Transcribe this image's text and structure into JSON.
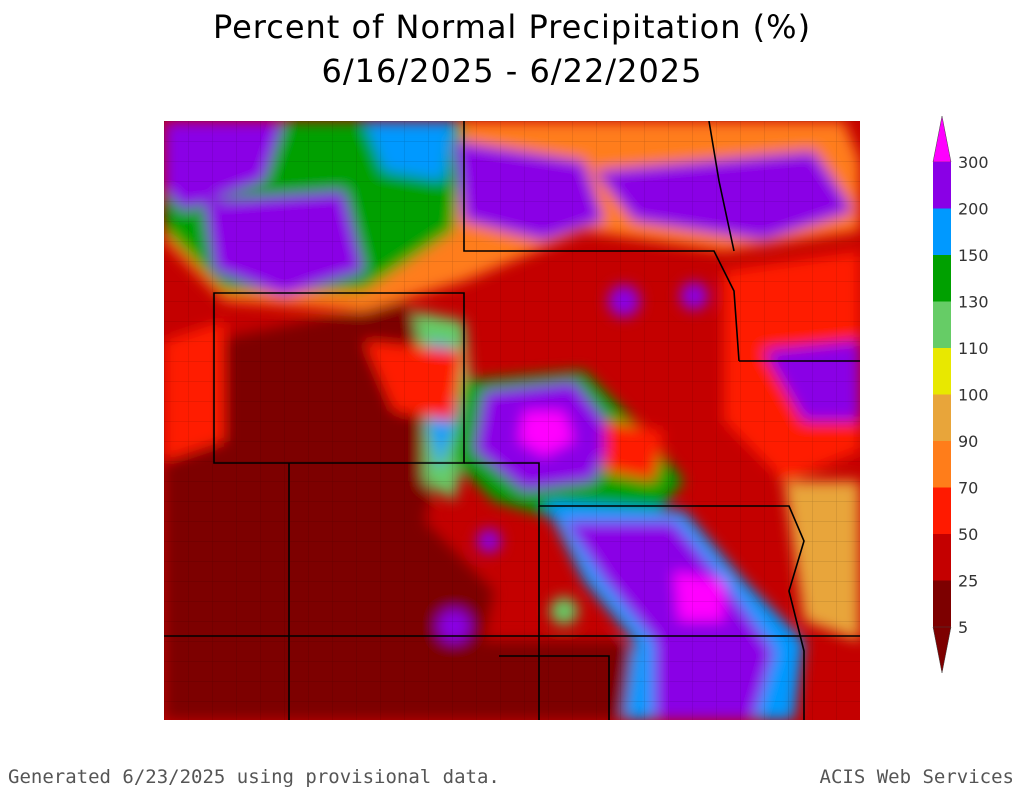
{
  "title": "Percent of Normal Precipitation (%)",
  "subtitle": "6/16/2025 - 6/22/2025",
  "legend": {
    "labels": [
      "5",
      "25",
      "50",
      "70",
      "90",
      "100",
      "110",
      "130",
      "150",
      "200",
      "300"
    ],
    "colors": [
      "#7d0000",
      "#c40000",
      "#ff1a00",
      "#ff7d1a",
      "#e8a53a",
      "#e8e800",
      "#66cc66",
      "#00a000",
      "#0099ff",
      "#8a00e6",
      "#ff00ff"
    ]
  },
  "footer": {
    "left": "Generated 6/23/2025 using provisional data.",
    "right": "ACIS Web Services"
  }
}
